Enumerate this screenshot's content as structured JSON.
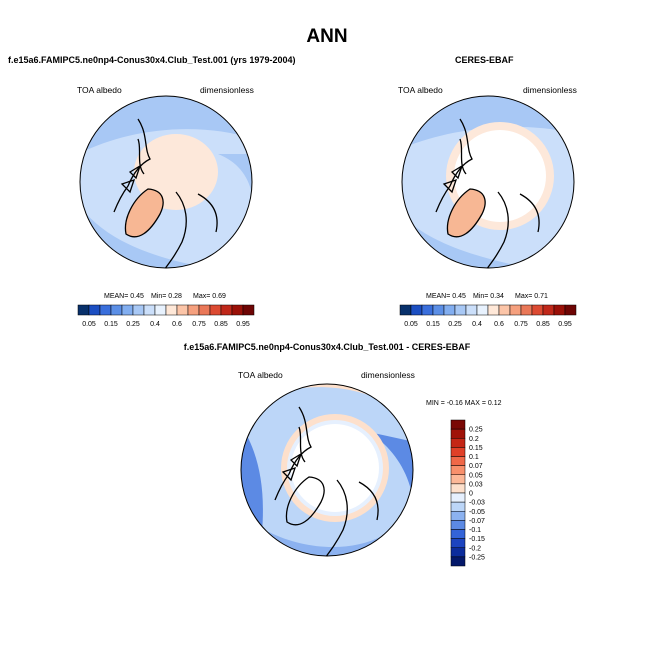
{
  "page": {
    "title": "ANN"
  },
  "chart_data": [
    {
      "type": "heatmap",
      "projection": "north-polar-stereographic",
      "title": "f.e15a6.FAMIPC5.ne0np4-Conus30x4.Club_Test.001 (yrs 1979-2004)",
      "variable": "TOA albedo",
      "units": "dimensionless",
      "stats": {
        "mean": "MEAN=  0.45",
        "min": "Min=   0.28",
        "max": "Max=   0.69"
      },
      "colorbar": {
        "orientation": "horizontal",
        "levels": [
          "0.05",
          "0.15",
          "0.25",
          "0.4",
          "0.6",
          "0.75",
          "0.85",
          "0.95"
        ],
        "colors": [
          "#08306b",
          "#1c4fc2",
          "#3a6fdc",
          "#5c8fe6",
          "#82aef0",
          "#a8c8f5",
          "#cbdffa",
          "#e8f2fe",
          "#ffe8d8",
          "#fcc5a8",
          "#f5a07e",
          "#ea7858",
          "#dc4a32",
          "#c0281a",
          "#9a1008",
          "#6e0504"
        ]
      }
    },
    {
      "type": "heatmap",
      "projection": "north-polar-stereographic",
      "title": "CERES-EBAF",
      "variable": "TOA albedo",
      "units": "dimensionless",
      "stats": {
        "mean": "MEAN=  0.45",
        "min": "Min=   0.34",
        "max": "Max=   0.71"
      },
      "colorbar": {
        "orientation": "horizontal",
        "levels": [
          "0.05",
          "0.15",
          "0.25",
          "0.4",
          "0.6",
          "0.75",
          "0.85",
          "0.95"
        ],
        "colors": [
          "#08306b",
          "#1c4fc2",
          "#3a6fdc",
          "#5c8fe6",
          "#82aef0",
          "#a8c8f5",
          "#cbdffa",
          "#e8f2fe",
          "#ffe8d8",
          "#fcc5a8",
          "#f5a07e",
          "#ea7858",
          "#dc4a32",
          "#c0281a",
          "#9a1008",
          "#6e0504"
        ]
      }
    },
    {
      "type": "heatmap",
      "projection": "north-polar-stereographic",
      "title": "f.e15a6.FAMIPC5.ne0np4-Conus30x4.Club_Test.001 - CERES-EBAF",
      "variable": "TOA albedo",
      "units": "dimensionless",
      "stats": {
        "minmax": "MIN = -0.16 MAX =  0.12"
      },
      "colorbar": {
        "orientation": "vertical",
        "levels": [
          "0.25",
          "0.2",
          "0.15",
          "0.1",
          "0.07",
          "0.05",
          "0.03",
          "0",
          "-0.03",
          "-0.05",
          "-0.07",
          "-0.1",
          "-0.15",
          "-0.2",
          "-0.25"
        ],
        "colors": [
          "#7a0804",
          "#a01208",
          "#c42616",
          "#e04028",
          "#f06848",
          "#f8906c",
          "#fcb898",
          "#fde0cc",
          "#e6f0fe",
          "#bcd6f8",
          "#8cb2f0",
          "#5c8ae4",
          "#3464d8",
          "#1c44c0",
          "#0c2c9c",
          "#04186a"
        ]
      }
    }
  ]
}
